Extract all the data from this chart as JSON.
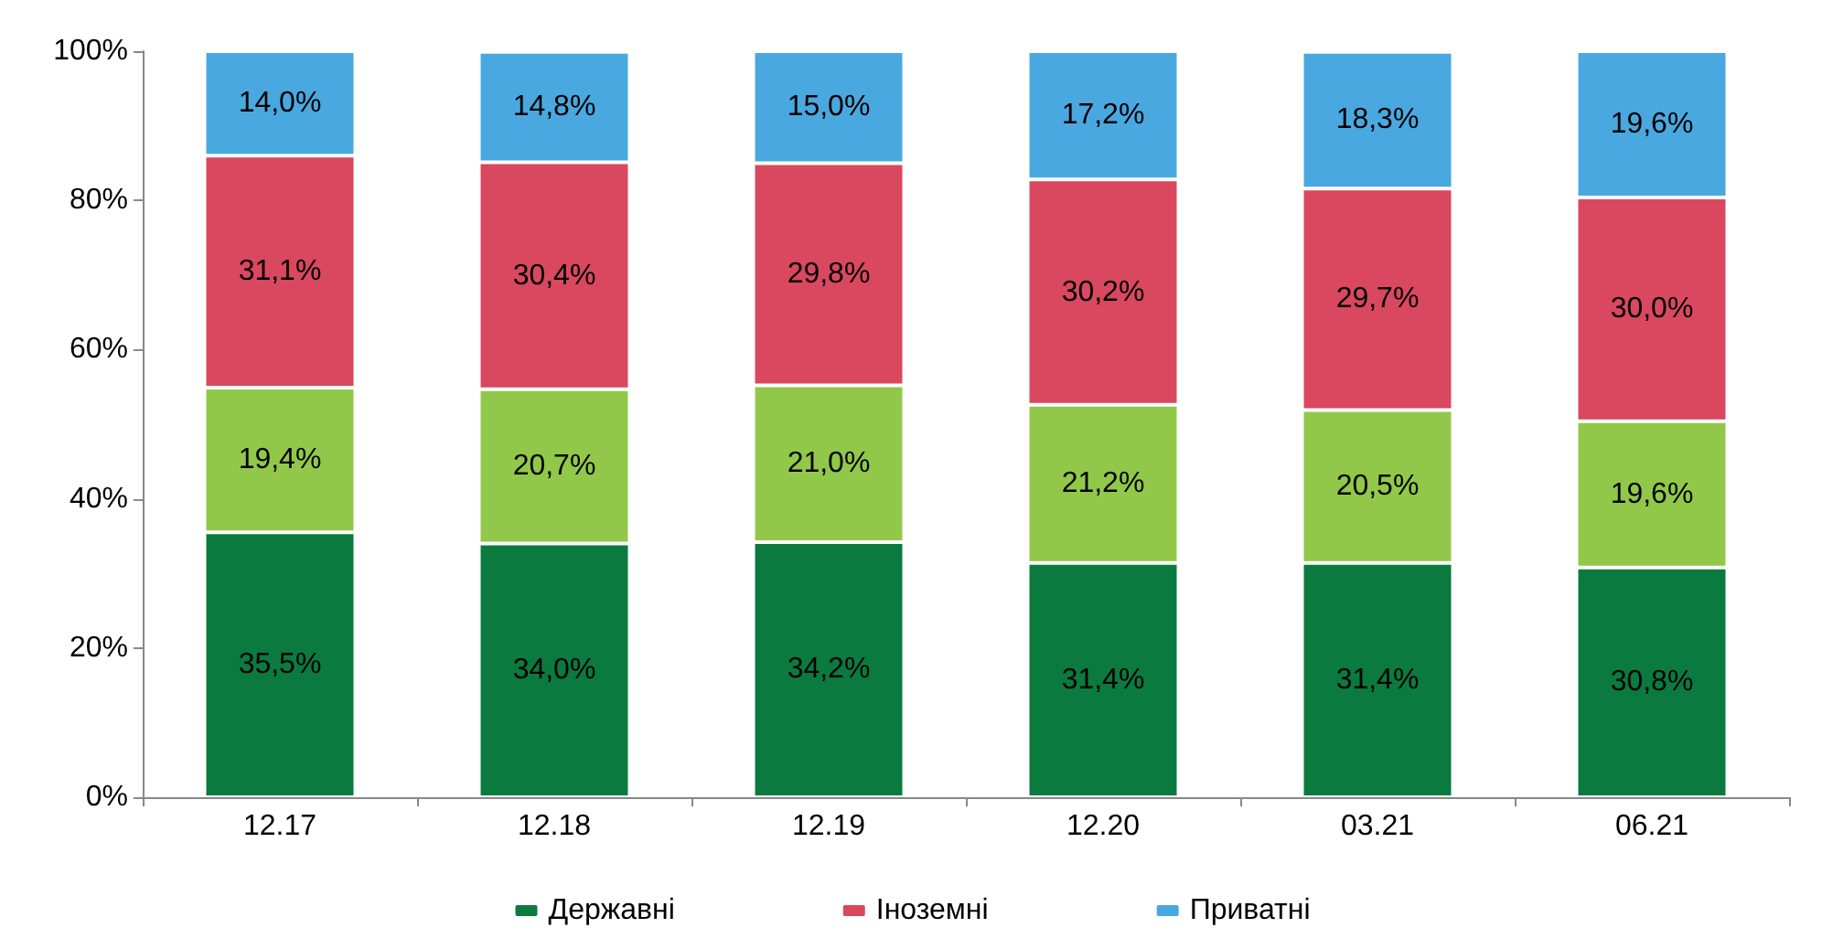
{
  "chart_data": {
    "type": "bar",
    "stacked": true,
    "categories": [
      "12.17",
      "12.18",
      "12.19",
      "12.20",
      "03.21",
      "06.21"
    ],
    "series": [
      {
        "name": "Державні",
        "color": "#0b7a3e",
        "values": [
          35.5,
          34.0,
          34.2,
          31.4,
          31.4,
          30.8
        ],
        "value_labels": [
          "35,5%",
          "34,0%",
          "34,2%",
          "31,4%",
          "31,4%",
          "30,8%"
        ]
      },
      {
        "color": "#92c84a",
        "values": [
          19.4,
          20.7,
          21.0,
          21.2,
          20.5,
          19.6
        ],
        "value_labels": [
          "19,4%",
          "20,7%",
          "21,0%",
          "21,2%",
          "20,5%",
          "19,6%"
        ]
      },
      {
        "name": "Іноземні",
        "color": "#d9485f",
        "values": [
          31.1,
          30.4,
          29.8,
          30.2,
          29.7,
          30.0
        ],
        "value_labels": [
          "31,1%",
          "30,4%",
          "29,8%",
          "30,2%",
          "29,7%",
          "30,0%"
        ]
      },
      {
        "name": "Приватні",
        "color": "#4aa8e0",
        "values": [
          14.0,
          14.8,
          15.0,
          17.2,
          18.3,
          19.6
        ],
        "value_labels": [
          "14,0%",
          "14,8%",
          "15,0%",
          "17,2%",
          "18,3%",
          "19,6%"
        ]
      }
    ],
    "ylim": [
      0,
      100
    ],
    "yticks": [
      {
        "value": 0,
        "label": "0%"
      },
      {
        "value": 20,
        "label": "20%"
      },
      {
        "value": 40,
        "label": "40%"
      },
      {
        "value": 60,
        "label": "60%"
      },
      {
        "value": 80,
        "label": "80%"
      },
      {
        "value": 100,
        "label": "100%"
      }
    ],
    "grid": false,
    "legend": "bottom"
  }
}
